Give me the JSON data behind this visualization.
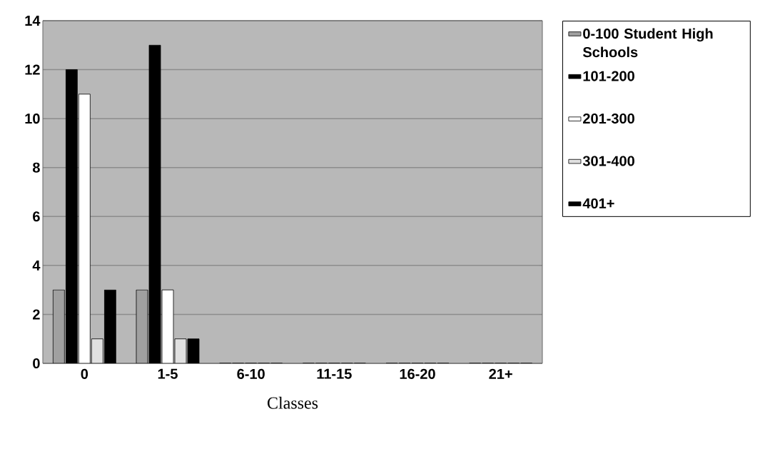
{
  "chart_data": {
    "type": "bar",
    "xlabel": "Classes",
    "categories": [
      "0",
      "1-5",
      "6-10",
      "11-15",
      "16-20",
      "21+"
    ],
    "series": [
      {
        "name": "0-100 Student High Schools",
        "color": "#a0a0a0",
        "values": [
          3,
          3,
          0,
          0,
          0,
          0
        ]
      },
      {
        "name": "101-200",
        "color": "#000000",
        "values": [
          12,
          13,
          0,
          0,
          0,
          0
        ]
      },
      {
        "name": "201-300",
        "color": "#ffffff",
        "values": [
          11,
          3,
          0,
          0,
          0,
          0
        ]
      },
      {
        "name": "301-400",
        "color": "#e0e0e0",
        "values": [
          1,
          1,
          0,
          0,
          0,
          0
        ]
      },
      {
        "name": "401+",
        "color": "#000000",
        "values": [
          3,
          1,
          0,
          0,
          0,
          0
        ]
      }
    ],
    "ylim": [
      0,
      14
    ],
    "yticks": [
      0,
      2,
      4,
      6,
      8,
      10,
      12,
      14
    ],
    "grid": "y",
    "legend": "top right"
  }
}
